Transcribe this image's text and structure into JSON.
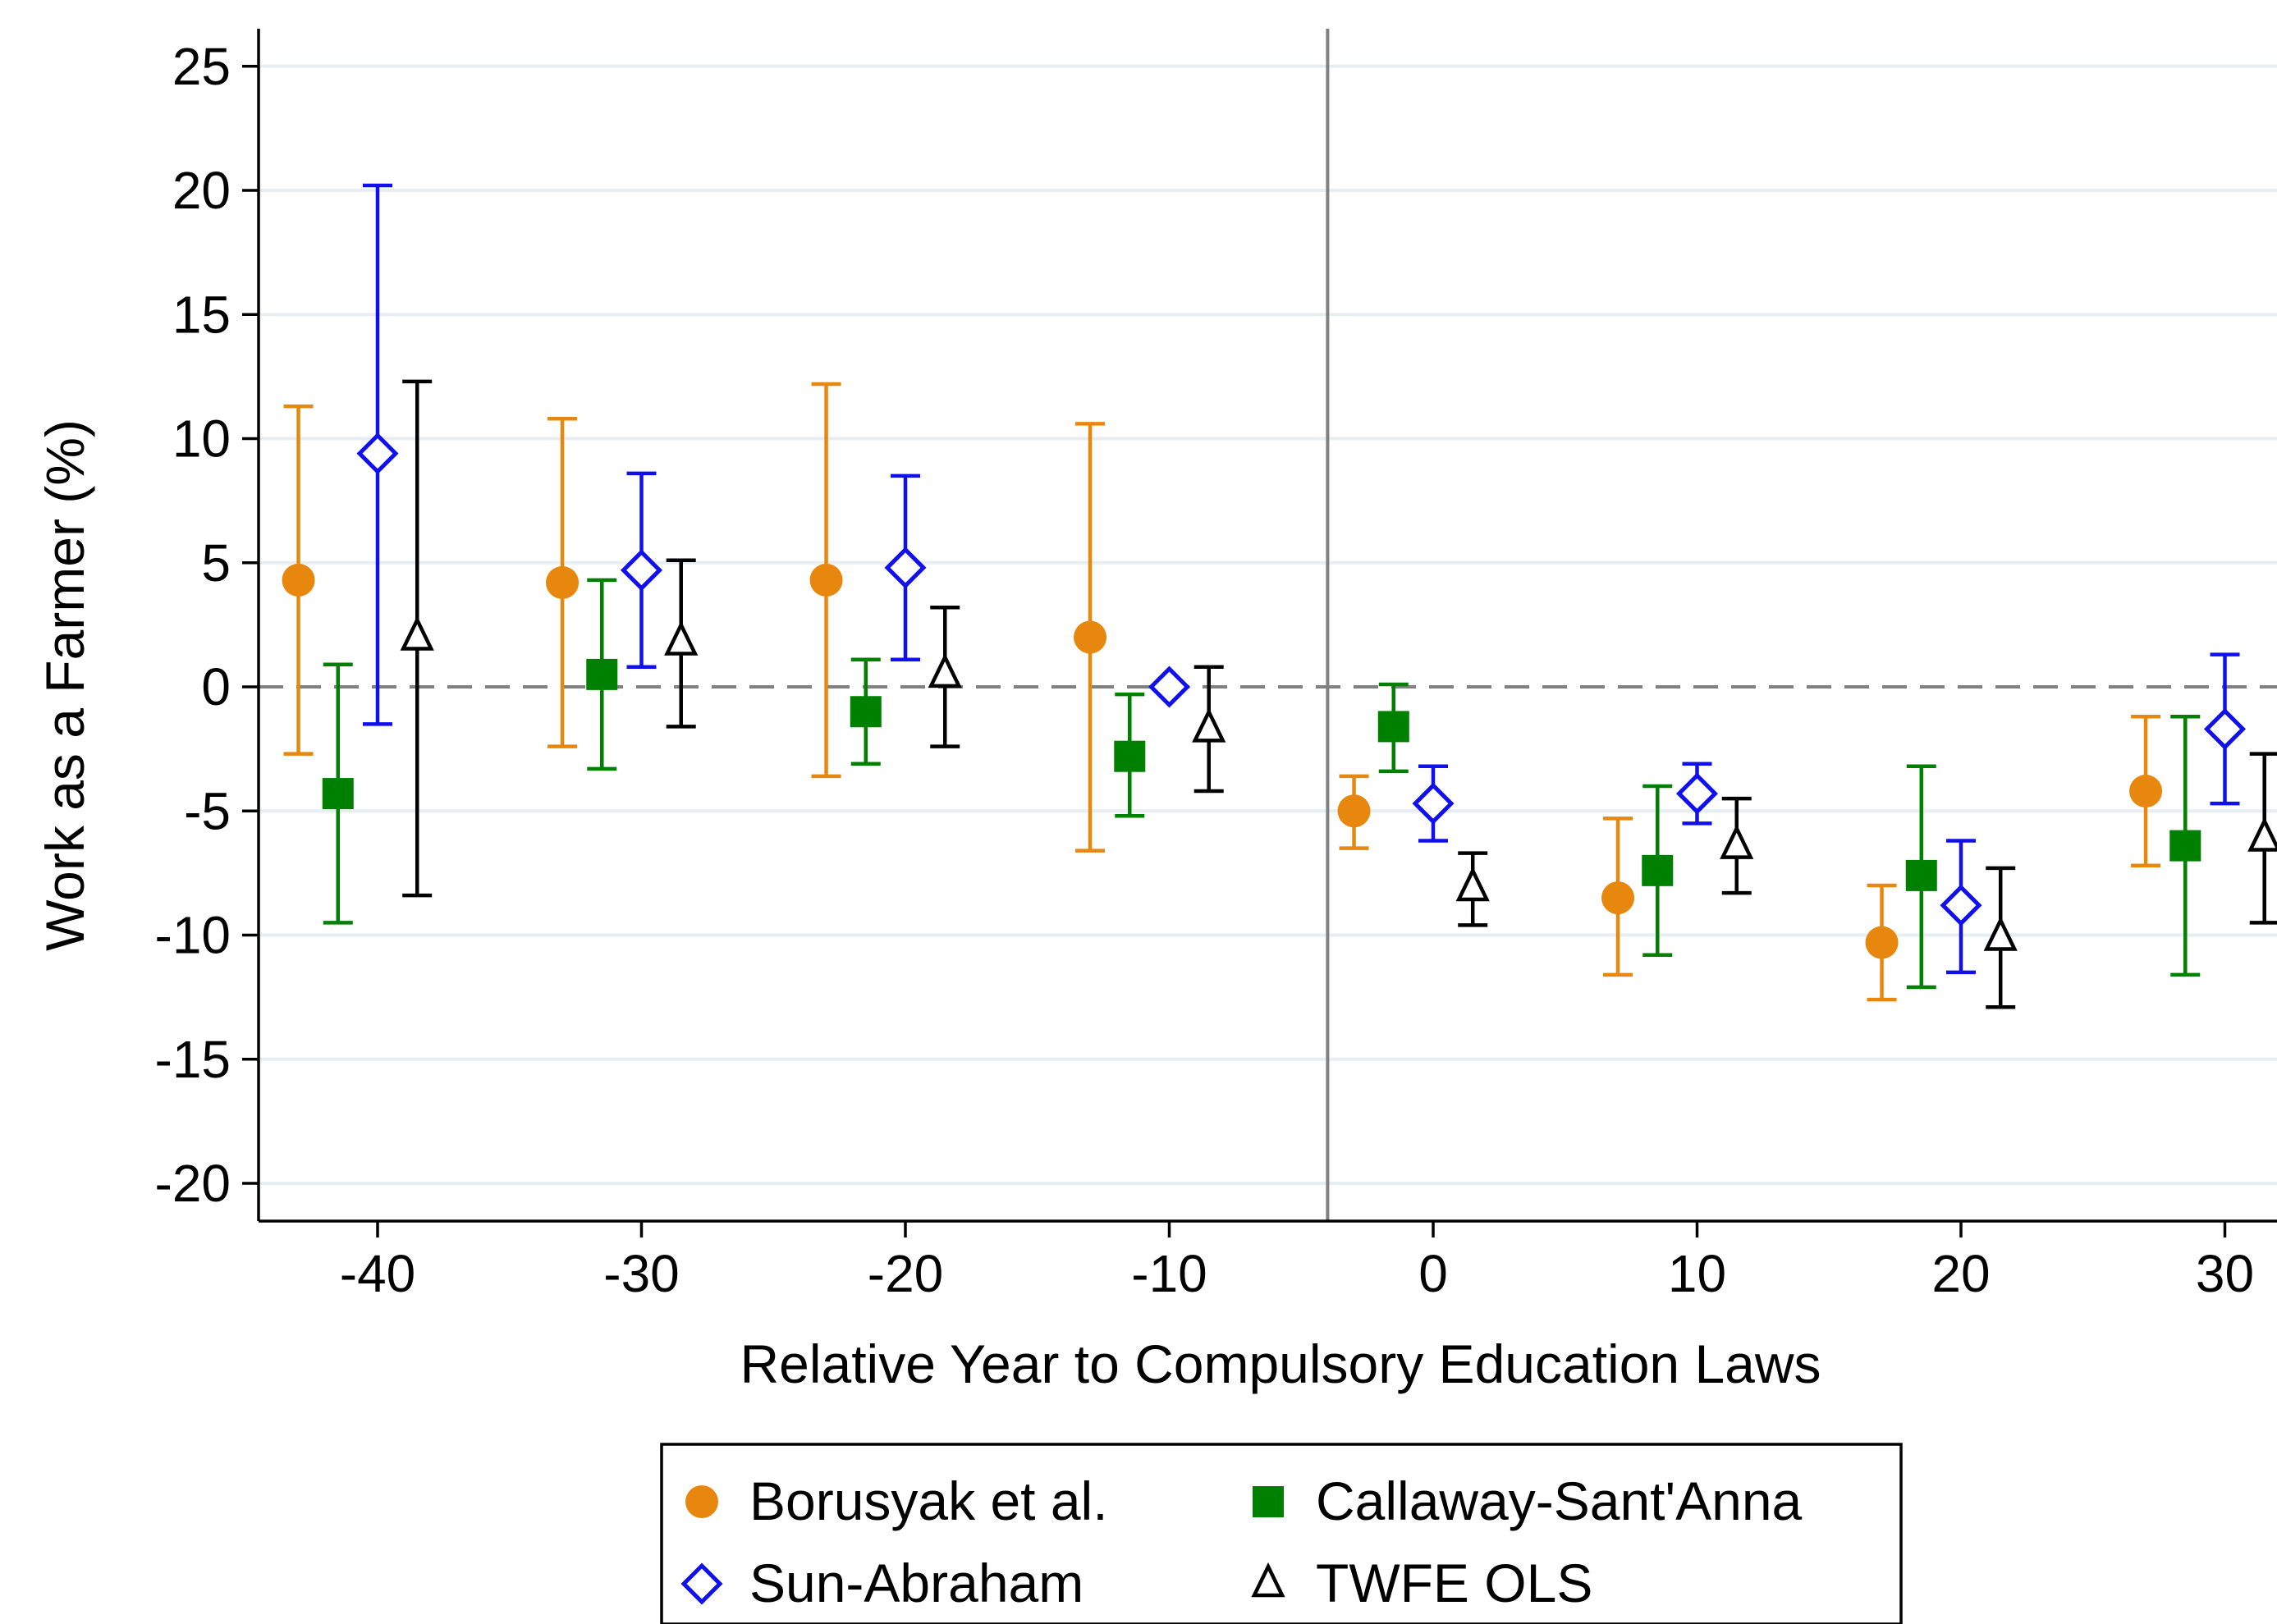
{
  "chart_data": {
    "type": "scatter",
    "title": "",
    "xlabel": "Relative Year to Compulsory Education Laws",
    "ylabel": "Work as a Farmer (%)",
    "xlim": [
      -45,
      32
    ],
    "ylim": [
      -21.5,
      26.5
    ],
    "x_ticks": [
      -40,
      -30,
      -20,
      -10,
      0,
      10,
      20,
      30
    ],
    "y_ticks": [
      25,
      20,
      15,
      10,
      5,
      0,
      -5,
      -10,
      -15,
      -20
    ],
    "grid": "horizontal",
    "reference_lines": {
      "vertical_x": -4,
      "horizontal_y": 0
    },
    "legend_position": "bottom-center",
    "series": [
      {
        "name": "Borusyak et al.",
        "marker": "circle",
        "color": "#E8870E",
        "points": [
          {
            "x": -43,
            "y": 4.3,
            "lo": -2.7,
            "hi": 11.3
          },
          {
            "x": -33,
            "y": 4.2,
            "lo": -2.4,
            "hi": 10.8
          },
          {
            "x": -23,
            "y": 4.3,
            "lo": -3.6,
            "hi": 12.2
          },
          {
            "x": -13,
            "y": 2.0,
            "lo": -6.6,
            "hi": 10.6
          },
          {
            "x": -3,
            "y": -5.0,
            "lo": -6.5,
            "hi": -3.6
          },
          {
            "x": 7,
            "y": -8.5,
            "lo": -11.6,
            "hi": -5.3
          },
          {
            "x": 17,
            "y": -10.3,
            "lo": -12.6,
            "hi": -8.0
          },
          {
            "x": 27,
            "y": -4.2,
            "lo": -7.2,
            "hi": -1.2
          }
        ]
      },
      {
        "name": "Callaway-Sant'Anna",
        "marker": "square",
        "color": "#008000",
        "points": [
          {
            "x": -41.5,
            "y": -4.3,
            "lo": -9.5,
            "hi": 0.9
          },
          {
            "x": -31.5,
            "y": 0.5,
            "lo": -3.3,
            "hi": 4.3
          },
          {
            "x": -21.5,
            "y": -1.0,
            "lo": -3.1,
            "hi": 1.1
          },
          {
            "x": -11.5,
            "y": -2.8,
            "lo": -5.2,
            "hi": -0.3
          },
          {
            "x": -1.5,
            "y": -1.6,
            "lo": -3.4,
            "hi": 0.1
          },
          {
            "x": 8.5,
            "y": -7.4,
            "lo": -10.8,
            "hi": -4.0
          },
          {
            "x": 18.5,
            "y": -7.6,
            "lo": -12.1,
            "hi": -3.2
          },
          {
            "x": 28.5,
            "y": -6.4,
            "lo": -11.6,
            "hi": -1.2
          }
        ]
      },
      {
        "name": "Sun-Abraham",
        "marker": "diamond-hollow",
        "color": "#1010EE",
        "points": [
          {
            "x": -40,
            "y": 9.4,
            "lo": -1.5,
            "hi": 20.2
          },
          {
            "x": -30,
            "y": 4.7,
            "lo": 0.8,
            "hi": 8.6
          },
          {
            "x": -20,
            "y": 4.8,
            "lo": 1.1,
            "hi": 8.5
          },
          {
            "x": -10,
            "y": 0.0,
            "lo": 0.0,
            "hi": 0.0
          },
          {
            "x": 0,
            "y": -4.7,
            "lo": -6.2,
            "hi": -3.2
          },
          {
            "x": 10,
            "y": -4.3,
            "lo": -5.5,
            "hi": -3.1
          },
          {
            "x": 20,
            "y": -8.8,
            "lo": -11.5,
            "hi": -6.2
          },
          {
            "x": 30,
            "y": -1.7,
            "lo": -4.7,
            "hi": 1.3
          }
        ]
      },
      {
        "name": "TWFE OLS",
        "marker": "triangle-hollow",
        "color": "#000000",
        "points": [
          {
            "x": -38.5,
            "y": 2.0,
            "lo": -8.4,
            "hi": 12.3
          },
          {
            "x": -28.5,
            "y": 1.8,
            "lo": -1.6,
            "hi": 5.1
          },
          {
            "x": -18.5,
            "y": 0.5,
            "lo": -2.4,
            "hi": 3.2
          },
          {
            "x": -8.5,
            "y": -1.7,
            "lo": -4.2,
            "hi": 0.8
          },
          {
            "x": 1.5,
            "y": -8.1,
            "lo": -9.6,
            "hi": -6.7
          },
          {
            "x": 11.5,
            "y": -6.4,
            "lo": -8.3,
            "hi": -4.5
          },
          {
            "x": 21.5,
            "y": -10.1,
            "lo": -12.9,
            "hi": -7.3
          },
          {
            "x": 31.5,
            "y": -6.1,
            "lo": -9.5,
            "hi": -2.7
          }
        ]
      }
    ]
  }
}
